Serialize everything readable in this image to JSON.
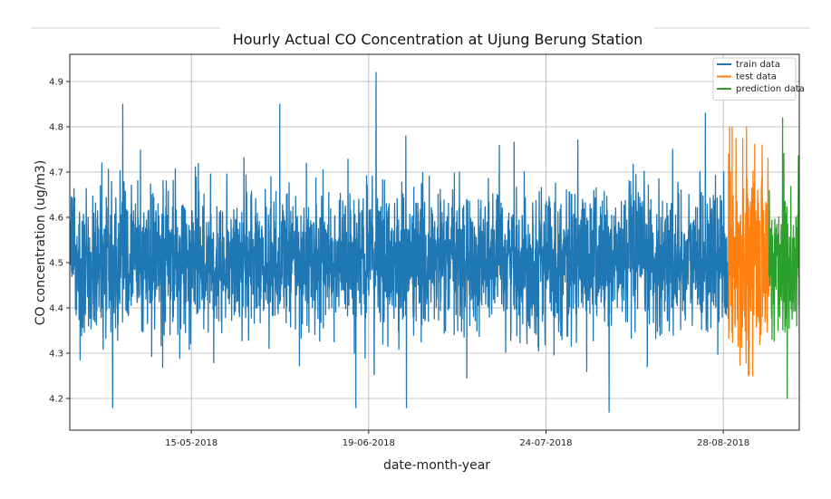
{
  "chart_data": {
    "type": "line",
    "title": "Hourly Actual CO Concentration at Ujung Berung Station",
    "xlabel": "date-month-year",
    "ylabel": "CO concentration (ug/m3)",
    "x_range": [
      "2018-04-21",
      "2018-09-12"
    ],
    "ylim": [
      4.13,
      4.96
    ],
    "y_ticks": [
      4.2,
      4.3,
      4.4,
      4.5,
      4.6,
      4.7,
      4.8,
      4.9
    ],
    "y_tick_labels": [
      "4.2",
      "4.3",
      "4.4",
      "4.5",
      "4.6",
      "4.7",
      "4.8",
      "4.9"
    ],
    "x_ticks": [
      "2018-05-15",
      "2018-06-19",
      "2018-07-24",
      "2018-08-28"
    ],
    "x_tick_labels": [
      "15-05-2018",
      "19-06-2018",
      "24-07-2018",
      "28-08-2018"
    ],
    "grid": true,
    "legend_position": "top-right",
    "series": [
      {
        "name": "train data",
        "color": "#1f77b4",
        "x_range": [
          "2018-04-21",
          "2018-08-29"
        ],
        "typical_range": [
          4.38,
          4.63
        ],
        "min": 4.17,
        "max": 4.92,
        "notable_peaks": [
          {
            "x": "2018-04-29",
            "y": 4.87
          },
          {
            "x": "2018-05-01",
            "y": 4.85
          },
          {
            "x": "2018-06-01",
            "y": 4.85
          },
          {
            "x": "2018-06-20",
            "y": 4.92
          },
          {
            "x": "2018-08-24",
            "y": 4.83
          }
        ],
        "notable_troughs": [
          {
            "x": "2018-04-29",
            "y": 4.18
          },
          {
            "x": "2018-06-16",
            "y": 4.18
          },
          {
            "x": "2018-06-26",
            "y": 4.18
          },
          {
            "x": "2018-08-05",
            "y": 4.17
          }
        ]
      },
      {
        "name": "test data",
        "color": "#ff7f0e",
        "x_range": [
          "2018-08-29",
          "2018-09-06"
        ],
        "typical_range": [
          4.35,
          4.68
        ],
        "min": 4.25,
        "max": 4.8
      },
      {
        "name": "prediction data",
        "color": "#2ca02c",
        "x_range": [
          "2018-09-06",
          "2018-09-12"
        ],
        "typical_range": [
          4.35,
          4.65
        ],
        "min": 4.2,
        "max": 4.82
      }
    ]
  }
}
